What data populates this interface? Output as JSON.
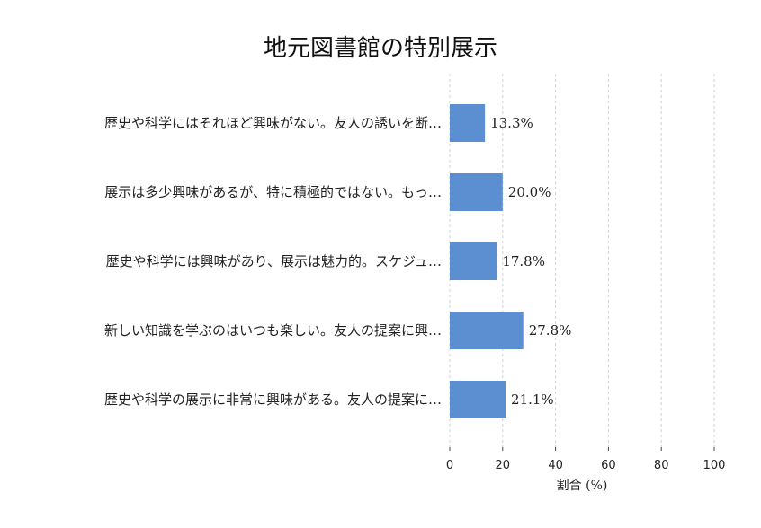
{
  "chart_data": {
    "type": "bar",
    "orientation": "horizontal",
    "title": "地元図書館の特別展示",
    "xlabel": "割合 (%)",
    "ylabel": "",
    "xlim": [
      0,
      100
    ],
    "xticks": [
      0,
      20,
      40,
      60,
      80,
      100
    ],
    "grid": true,
    "categories": [
      "歴史や科学にはそれほど興味がない。友人の誘いを断…",
      "展示は多少興味があるが、特に積極的ではない。もっ…",
      "歴史や科学には興味があり、展示は魅力的。スケジュ…",
      "新しい知識を学ぶのはいつも楽しい。友人の提案に興…",
      "歴史や科学の展示に非常に興味がある。友人の提案に…"
    ],
    "values": [
      13.3,
      20.0,
      17.8,
      27.8,
      21.1
    ],
    "value_labels": [
      "13.3%",
      "20.0%",
      "17.8%",
      "27.8%",
      "21.1%"
    ],
    "bar_color": "#5b8fd1"
  }
}
